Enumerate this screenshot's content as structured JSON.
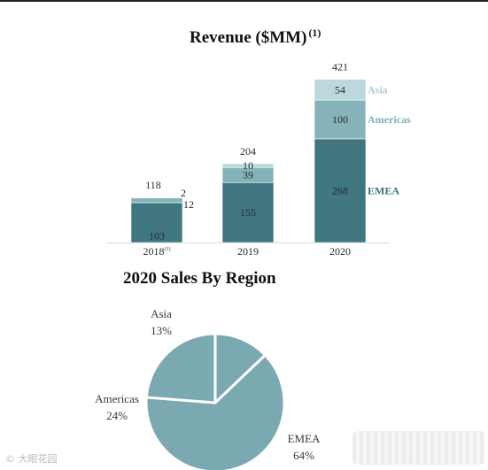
{
  "chart_data": [
    {
      "type": "bar",
      "stacked": true,
      "title": "Revenue ($MM)",
      "title_footnote": "(1)",
      "categories": [
        "2018",
        "2019",
        "2020"
      ],
      "category_footnotes": [
        "(1)",
        "",
        ""
      ],
      "series": [
        {
          "name": "EMEA",
          "values": [
            103,
            155,
            268
          ],
          "color": "#3f7680"
        },
        {
          "name": "Americas",
          "values": [
            12,
            39,
            100
          ],
          "color": "#86b3ba"
        },
        {
          "name": "Asia",
          "values": [
            2,
            10,
            54
          ],
          "color": "#bcd8dc"
        }
      ],
      "totals": [
        118,
        204,
        421
      ],
      "ylim": [
        0,
        421
      ],
      "grid": false,
      "legend": "right, beside 2020 bar"
    },
    {
      "type": "pie",
      "title": "2020 Sales By Region",
      "slices": [
        {
          "label": "Asia",
          "value": 13,
          "display": "13%",
          "color": "#7aa9b1"
        },
        {
          "label": "EMEA",
          "value": 64,
          "display": "64%",
          "color": "#7aa9b1"
        },
        {
          "label": "Americas",
          "value": 24,
          "display": "24%",
          "color": "#7aa9b1"
        }
      ],
      "edge_color": "#ffffff"
    }
  ],
  "watermark": "© 大眼花园"
}
